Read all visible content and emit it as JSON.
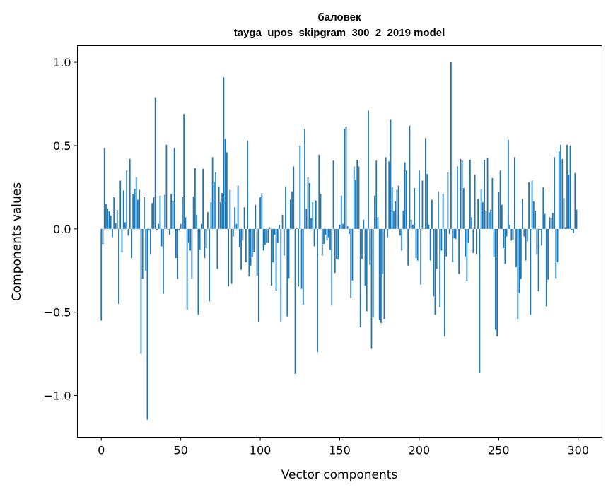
{
  "chart_data": {
    "type": "bar",
    "title": "баловек",
    "subtitle": "tayga_upos_skipgram_300_2_2019 model",
    "xlabel": "Vector components",
    "ylabel": "Components values",
    "xlim": [
      -15,
      315
    ],
    "ylim": [
      -1.25,
      1.1
    ],
    "xticks": [
      0,
      50,
      100,
      150,
      200,
      250,
      300
    ],
    "xtick_labels": [
      "0",
      "50",
      "100",
      "150",
      "200",
      "250",
      "300"
    ],
    "yticks": [
      -1.0,
      -0.5,
      0.0,
      0.5,
      1.0
    ],
    "ytick_labels": [
      "−1.0",
      "−0.5",
      "0.0",
      "0.5",
      "1.0"
    ],
    "grid": false,
    "bar_color": "#1f77b4",
    "values": [
      -0.55,
      -0.09,
      0.485,
      0.15,
      0.12,
      0.105,
      0.08,
      -0.05,
      0.19,
      0.035,
      0.115,
      -0.45,
      0.29,
      -0.14,
      0.23,
      0.04,
      0.35,
      -0.04,
      0.42,
      -0.175,
      0.21,
      0.24,
      0.31,
      0.175,
      0.235,
      -0.75,
      -0.3,
      0.19,
      -0.25,
      -1.145,
      -0.01,
      -0.155,
      0.155,
      0.19,
      0.79,
      -0.01,
      0.03,
      0.2,
      -0.105,
      -0.39,
      0.205,
      0.505,
      -0.01,
      -0.035,
      0.21,
      0.165,
      0.485,
      -0.175,
      -0.3,
      -0.01,
      0.03,
      0.19,
      0.69,
      0.07,
      -0.485,
      -0.085,
      -0.13,
      -0.3,
      0.195,
      0.365,
      0.085,
      -0.515,
      -0.125,
      0.03,
      0.36,
      -0.175,
      -0.115,
      0.1,
      -0.435,
      0.16,
      0.43,
      0.28,
      0.34,
      -0.24,
      0.255,
      0.16,
      0.215,
      0.91,
      0.54,
      0.46,
      -0.345,
      0.235,
      -0.33,
      -0.045,
      0.13,
      0.03,
      0.26,
      -0.11,
      -0.245,
      -0.07,
      0.13,
      -0.2,
      0.53,
      -0.285,
      -0.22,
      -0.17,
      -0.14,
      0.145,
      -0.28,
      -0.56,
      0.19,
      0.215,
      -0.13,
      -0.095,
      -0.085,
      -0.085,
      0.01,
      -0.34,
      -0.2,
      -0.035,
      -0.37,
      -0.085,
      0.025,
      -0.56,
      0.085,
      -0.16,
      0.255,
      -0.525,
      -0.295,
      0.175,
      0.225,
      0.375,
      -0.87,
      0.005,
      -0.345,
      0.5,
      -0.36,
      -0.455,
      0.6,
      0.12,
      0.31,
      0.275,
      0.065,
      0.16,
      -0.105,
      0.17,
      -0.74,
      0.445,
      0.21,
      -0.16,
      -0.09,
      -0.035,
      -0.07,
      -0.05,
      -0.125,
      -0.46,
      0.41,
      -0.265,
      -0.18,
      -0.185,
      0.025,
      0.2,
      0.03,
      0.6,
      0.615,
      0.015,
      -0.03,
      -0.415,
      -0.31,
      0.375,
      0.295,
      0.415,
      0.375,
      -0.59,
      -0.18,
      0.055,
      -0.34,
      -0.495,
      0.71,
      -0.215,
      -0.72,
      -0.53,
      0.2,
      0.41,
      0.07,
      -0.545,
      -0.565,
      -0.27,
      -0.54,
      0.43,
      -0.05,
      0.405,
      0.655,
      0.25,
      0.105,
      0.165,
      0.235,
      0.26,
      -0.04,
      -0.13,
      0.11,
      0.4,
      0.35,
      -0.22,
      0.62,
      0.055,
      0.025,
      0.245,
      -0.175,
      -0.19,
      0.35,
      -0.335,
      0.29,
      0.005,
      0.545,
      0.33,
      0.025,
      -0.19,
      0.175,
      -0.405,
      -0.515,
      -0.24,
      0.225,
      -0.47,
      -0.13,
      0.21,
      -0.645,
      -0.165,
      0.34,
      -0.03,
      1.0,
      -0.2,
      -0.055,
      -0.06,
      0.375,
      -0.27,
      0.42,
      0.41,
      0.245,
      -0.165,
      -0.315,
      -0.085,
      0.415,
      0.07,
      -0.145,
      0.325,
      -0.155,
      0.18,
      -0.865,
      0.24,
      0.16,
      0.415,
      0.105,
      0.425,
      0.1,
      0.115,
      0.305,
      -0.17,
      -0.605,
      -0.645,
      0.22,
      0.35,
      0.145,
      -0.115,
      -0.21,
      -0.045,
      0.535,
      0.025,
      -0.07,
      -0.065,
      0.43,
      -0.23,
      -0.54,
      -0.385,
      -0.3,
      0.18,
      -0.045,
      -0.19,
      -0.075,
      0.28,
      -0.515,
      0.29,
      0.165,
      0.11,
      -0.155,
      -0.375,
      -0.005,
      -0.1,
      0.25,
      0.09,
      -0.465,
      -0.305,
      0.07,
      0.065,
      0.095,
      0.43,
      -0.295,
      -0.2,
      0.465,
      0.505,
      0.42,
      0.185,
      0.01,
      0.505,
      0.325,
      0.5,
      -0.005,
      -0.025,
      0.335,
      0.115
    ]
  }
}
